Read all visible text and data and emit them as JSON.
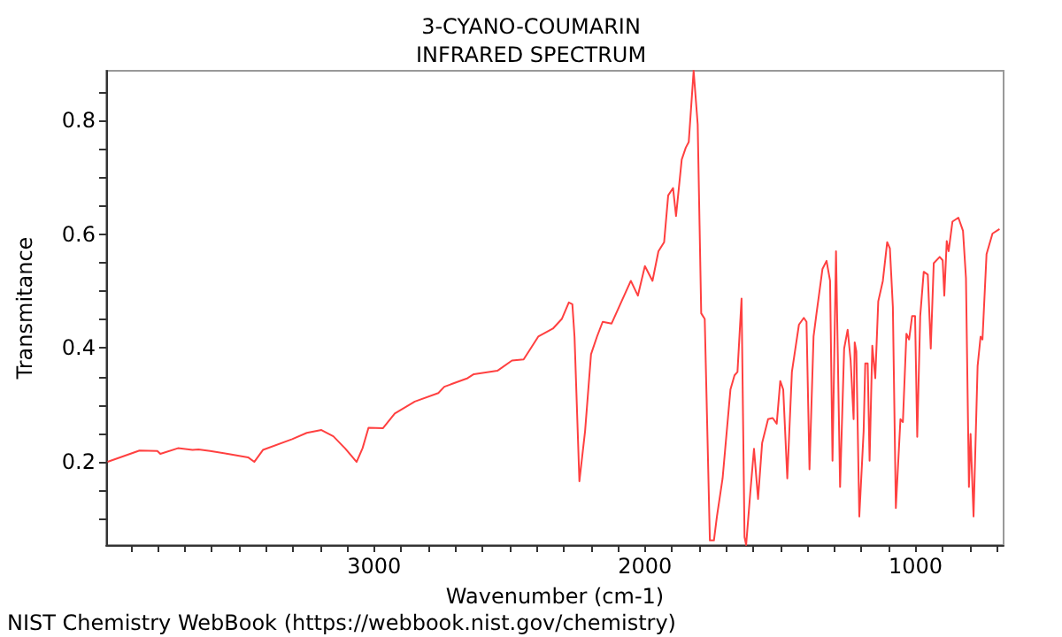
{
  "chart_data": {
    "type": "line",
    "title": "3-CYANO-COUMARIN",
    "subtitle": "INFRARED SPECTRUM",
    "xlabel": "Wavenumber (cm-1)",
    "ylabel": "Transmitance",
    "annotations": [
      "NIST Chemistry WebBook (https://webbook.nist.gov/chemistry)"
    ],
    "xlim": [
      3990,
      675
    ],
    "ylim": [
      0.054,
      0.887
    ],
    "xticks": [
      {
        "value": 3900,
        "label": null
      },
      {
        "value": 3800,
        "label": null
      },
      {
        "value": 3700,
        "label": null
      },
      {
        "value": 3600,
        "label": null
      },
      {
        "value": 3500,
        "label": null
      },
      {
        "value": 3400,
        "label": null
      },
      {
        "value": 3300,
        "label": null
      },
      {
        "value": 3200,
        "label": null
      },
      {
        "value": 3100,
        "label": null
      },
      3000,
      {
        "value": 2900,
        "label": null
      },
      {
        "value": 2800,
        "label": null
      },
      {
        "value": 2700,
        "label": null
      },
      {
        "value": 2600,
        "label": null
      },
      {
        "value": 2500,
        "label": null
      },
      {
        "value": 2400,
        "label": null
      },
      {
        "value": 2300,
        "label": null
      },
      {
        "value": 2200,
        "label": null
      },
      {
        "value": 2100,
        "label": null
      },
      2000,
      {
        "value": 1900,
        "label": null
      },
      {
        "value": 1800,
        "label": null
      },
      {
        "value": 1700,
        "label": null
      },
      {
        "value": 1600,
        "label": null
      },
      {
        "value": 1500,
        "label": null
      },
      {
        "value": 1400,
        "label": null
      },
      {
        "value": 1300,
        "label": null
      },
      {
        "value": 1200,
        "label": null
      },
      {
        "value": 1100,
        "label": null
      },
      1000,
      {
        "value": 900,
        "label": null
      },
      {
        "value": 800,
        "label": null
      },
      {
        "value": 700,
        "label": null
      }
    ],
    "yticks": [
      {
        "value": 0.1,
        "label": null
      },
      {
        "value": 0.15,
        "label": null
      },
      0.2,
      {
        "value": 0.25,
        "label": null
      },
      {
        "value": 0.3,
        "label": null
      },
      {
        "value": 0.35,
        "label": null
      },
      0.4,
      {
        "value": 0.45,
        "label": null
      },
      {
        "value": 0.5,
        "label": null
      },
      {
        "value": 0.55,
        "label": null
      },
      0.6,
      {
        "value": 0.65,
        "label": null
      },
      {
        "value": 0.7,
        "label": null
      },
      {
        "value": 0.75,
        "label": null
      },
      0.8,
      {
        "value": 0.85,
        "label": null
      }
    ],
    "grid": false,
    "marker": "none",
    "x": [
      3985,
      3867,
      3801,
      3790,
      3725,
      3671,
      3649,
      3606,
      3541,
      3466,
      3443,
      3411,
      3303,
      3249,
      3195,
      3151,
      3108,
      3065,
      3043,
      3021,
      2968,
      2924,
      2850,
      2763,
      2741,
      2655,
      2632,
      2545,
      2491,
      2448,
      2394,
      2340,
      2307,
      2281,
      2268,
      2260,
      2242,
      2221,
      2199,
      2177,
      2156,
      2123,
      2091,
      2052,
      2026,
      2000,
      1972,
      1950,
      1929,
      1914,
      1896,
      1885,
      1864,
      1849,
      1838,
      1820,
      1805,
      1792,
      1779,
      1760,
      1745,
      1734,
      1713,
      1684,
      1669,
      1658,
      1643,
      1632,
      1626,
      1610,
      1597,
      1582,
      1567,
      1545,
      1528,
      1513,
      1500,
      1489,
      1474,
      1457,
      1431,
      1413,
      1403,
      1392,
      1377,
      1366,
      1344,
      1329,
      1316,
      1307,
      1294,
      1279,
      1264,
      1251,
      1240,
      1229,
      1225,
      1219,
      1208,
      1192,
      1186,
      1177,
      1170,
      1160,
      1149,
      1138,
      1121,
      1105,
      1095,
      1084,
      1073,
      1056,
      1047,
      1034,
      1024,
      1013,
      1002,
      994,
      983,
      970,
      955,
      944,
      933,
      911,
      900,
      894,
      885,
      878,
      864,
      842,
      825,
      814,
      803,
      797,
      786,
      771,
      760,
      753,
      738,
      716,
      690
    ],
    "series": [
      {
        "color": "#ff4040",
        "values": [
          0.2,
          0.22,
          0.219,
          0.214,
          0.224,
          0.221,
          0.222,
          0.219,
          0.214,
          0.208,
          0.2,
          0.221,
          0.24,
          0.251,
          0.256,
          0.245,
          0.224,
          0.2,
          0.224,
          0.26,
          0.259,
          0.285,
          0.306,
          0.321,
          0.332,
          0.347,
          0.354,
          0.36,
          0.378,
          0.38,
          0.42,
          0.434,
          0.451,
          0.48,
          0.477,
          0.42,
          0.166,
          0.254,
          0.389,
          0.42,
          0.446,
          0.443,
          0.477,
          0.518,
          0.492,
          0.544,
          0.518,
          0.57,
          0.586,
          0.668,
          0.681,
          0.632,
          0.731,
          0.752,
          0.762,
          0.887,
          0.793,
          0.461,
          0.451,
          0.062,
          0.062,
          0.104,
          0.171,
          0.327,
          0.352,
          0.358,
          0.487,
          0.068,
          0.054,
          0.15,
          0.223,
          0.135,
          0.233,
          0.275,
          0.277,
          0.267,
          0.342,
          0.327,
          0.171,
          0.358,
          0.441,
          0.453,
          0.446,
          0.187,
          0.42,
          0.461,
          0.539,
          0.553,
          0.518,
          0.202,
          0.57,
          0.156,
          0.399,
          0.432,
          0.378,
          0.275,
          0.41,
          0.394,
          0.104,
          0.254,
          0.373,
          0.373,
          0.202,
          0.404,
          0.347,
          0.482,
          0.518,
          0.586,
          0.575,
          0.472,
          0.119,
          0.275,
          0.27,
          0.425,
          0.415,
          0.456,
          0.456,
          0.244,
          0.456,
          0.534,
          0.529,
          0.399,
          0.549,
          0.56,
          0.554,
          0.492,
          0.588,
          0.57,
          0.622,
          0.629,
          0.606,
          0.523,
          0.156,
          0.249,
          0.104,
          0.368,
          0.42,
          0.415,
          0.565,
          0.601,
          0.609
        ]
      }
    ]
  }
}
